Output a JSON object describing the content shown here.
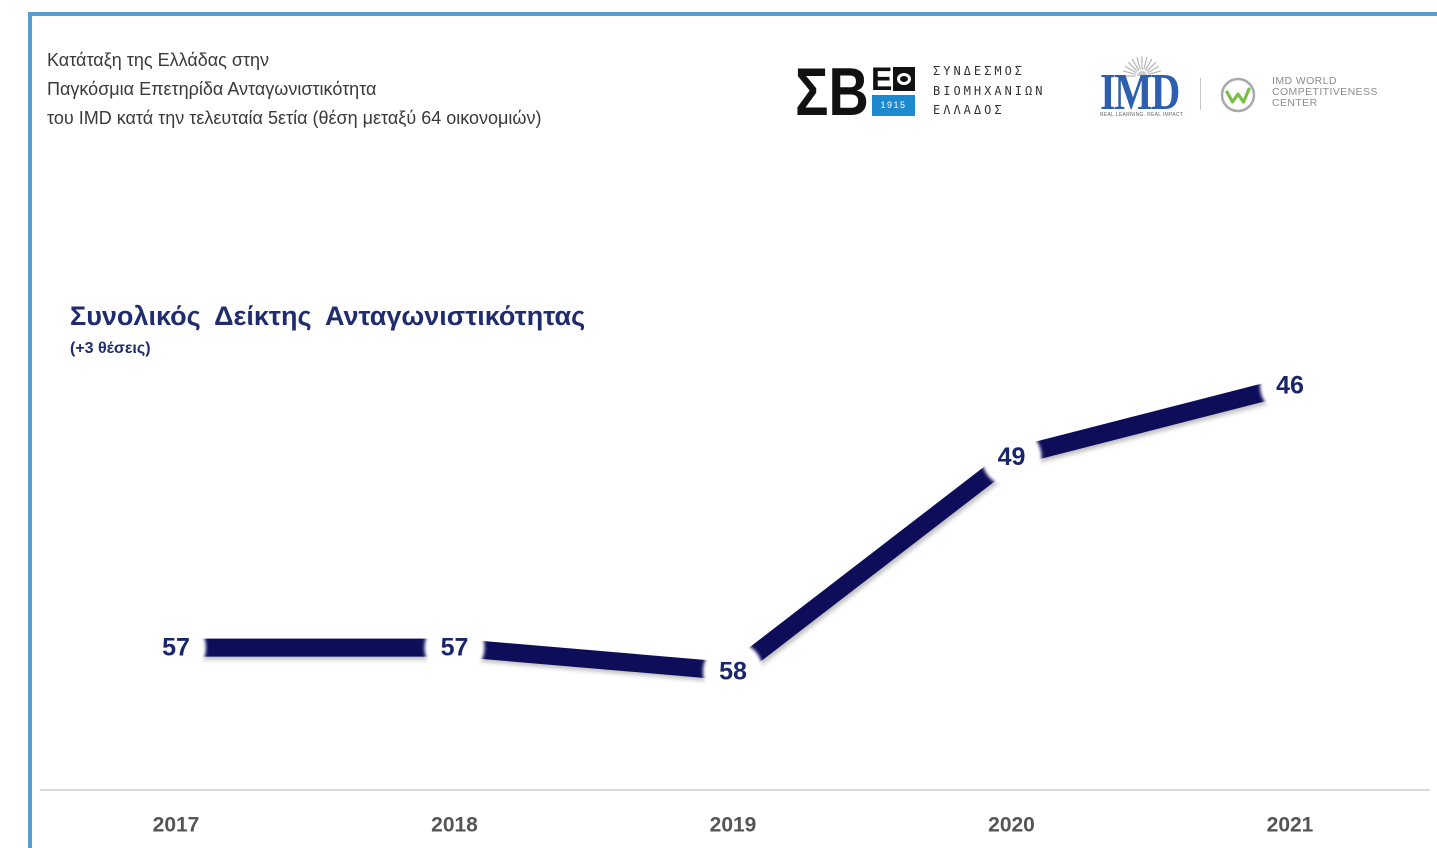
{
  "colors": {
    "card_border": "#5b9bd5",
    "title": "#1f2d6e",
    "sbe_blue": "#1d8ad0",
    "imd_blue": "#2e5fae",
    "wcc_green": "#79bf45"
  },
  "header": {
    "lines": [
      "Κατάταξη της Ελλάδας στην",
      "Παγκόσμια Επετηρίδα Ανταγωνιστικότητα",
      "του IMD κατά την τελευταία 5ετία (θέση μεταξύ 64 οικονομιών)"
    ]
  },
  "logos": {
    "sbe": {
      "mark": "ΣΒ",
      "letter": "Ε",
      "year": "1915",
      "emblem_icon": "sbe-emblem-icon",
      "name_lines": [
        "ΣΥΝΔΕΣΜΟΣ",
        "ΒΙΟΜΗΧΑΝΙΩΝ",
        "ΕΛΛΑΔΟΣ"
      ]
    },
    "imd": {
      "mark": "IMD",
      "tagline": "REAL LEARNING. REAL IMPACT",
      "icon": "sunburst-icon"
    },
    "wcc": {
      "icon": "w-circle-icon",
      "name_lines": [
        "IMD WORLD",
        "COMPETITIVENESS",
        "CENTER"
      ]
    }
  },
  "chart_data": {
    "type": "line",
    "title": "Συνολικός Δείκτης Ανταγωνιστικότητας",
    "subtitle": "(+3 θέσεις)",
    "categories": [
      "2017",
      "2018",
      "2019",
      "2020",
      "2021"
    ],
    "values": [
      57,
      57,
      58,
      49,
      46
    ],
    "ylim": [
      44,
      60
    ],
    "y_reversed": true,
    "data_labels": true,
    "grid": false,
    "legend": "none",
    "colors": {
      "line": "#0b0f5a",
      "labels": "#1a266b",
      "ticks": "#555555"
    }
  }
}
